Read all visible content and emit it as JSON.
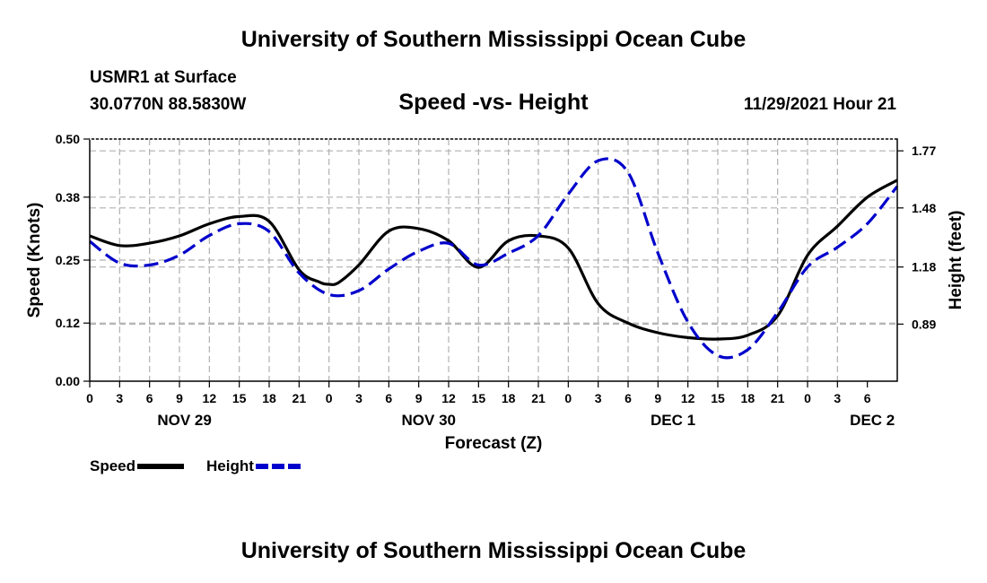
{
  "page": {
    "title_top": "University of Southern Mississippi Ocean Cube",
    "station_line1": "USMR1 at Surface",
    "station_line2": "30.0770N  88.5830W",
    "subtitle": "Speed -vs- Height",
    "datetime": "11/29/2021 Hour 21",
    "title_bottom": "University of Southern Mississippi Ocean Cube"
  },
  "legend": [
    {
      "label": "Speed",
      "color": "#000000",
      "dashed": false
    },
    {
      "label": "Height",
      "color": "#0000cc",
      "dashed": true
    }
  ],
  "chart_data": {
    "type": "line",
    "title": "Speed -vs- Height",
    "xlabel": "Forecast (Z)",
    "ylabel_left": "Speed (Knots)",
    "ylabel_right": "Height (feet)",
    "x_hours_range": [
      0,
      81
    ],
    "x_tick_step_hours": 3,
    "x_tick_labels": [
      "0",
      "3",
      "6",
      "9",
      "12",
      "15",
      "18",
      "21",
      "0",
      "3",
      "6",
      "9",
      "12",
      "15",
      "18",
      "21",
      "0",
      "3",
      "6",
      "9",
      "12",
      "15",
      "18",
      "21",
      "0",
      "3",
      "6"
    ],
    "date_labels": [
      {
        "label": "NOV 29",
        "hour": 9.5
      },
      {
        "label": "NOV 30",
        "hour": 34
      },
      {
        "label": "DEC 1",
        "hour": 58.5
      },
      {
        "label": "DEC 2",
        "hour": 78.5
      }
    ],
    "y_left": {
      "min": 0,
      "max": 0.5,
      "ticks": [
        "0.00",
        "0.12",
        "0.25",
        "0.38",
        "0.50"
      ]
    },
    "y_right": {
      "min": 0.6,
      "max": 1.83,
      "ticks": [
        0.89,
        1.18,
        1.48,
        1.77
      ],
      "tick_labels": [
        "0.89",
        "1.18",
        "1.48",
        "1.77"
      ]
    },
    "grid": true,
    "series": [
      {
        "name": "Speed",
        "axis": "left",
        "color": "#000000",
        "dashed": false,
        "x": [
          0,
          3,
          6,
          9,
          12,
          15,
          18,
          21,
          23,
          24,
          25,
          27,
          30,
          33,
          36,
          39,
          42,
          45,
          48,
          51,
          54,
          57,
          60,
          63,
          66,
          69,
          72,
          75,
          78,
          81
        ],
        "y": [
          0.3,
          0.28,
          0.285,
          0.3,
          0.325,
          0.34,
          0.33,
          0.23,
          0.205,
          0.2,
          0.204,
          0.24,
          0.31,
          0.315,
          0.29,
          0.235,
          0.29,
          0.3,
          0.275,
          0.16,
          0.12,
          0.1,
          0.09,
          0.087,
          0.095,
          0.135,
          0.26,
          0.32,
          0.38,
          0.415
        ]
      },
      {
        "name": "Height",
        "axis": "right",
        "color": "#0000cc",
        "dashed": true,
        "x": [
          0,
          3,
          6,
          9,
          12,
          15,
          18,
          21,
          24,
          27,
          30,
          33,
          36,
          39,
          42,
          45,
          48,
          51,
          54,
          57,
          60,
          63,
          66,
          69,
          72,
          75,
          78,
          81
        ],
        "y": [
          1.31,
          1.2,
          1.19,
          1.24,
          1.34,
          1.4,
          1.36,
          1.15,
          1.04,
          1.06,
          1.17,
          1.26,
          1.3,
          1.19,
          1.25,
          1.34,
          1.55,
          1.72,
          1.66,
          1.25,
          0.9,
          0.73,
          0.76,
          0.95,
          1.18,
          1.28,
          1.4,
          1.59
        ]
      }
    ]
  }
}
